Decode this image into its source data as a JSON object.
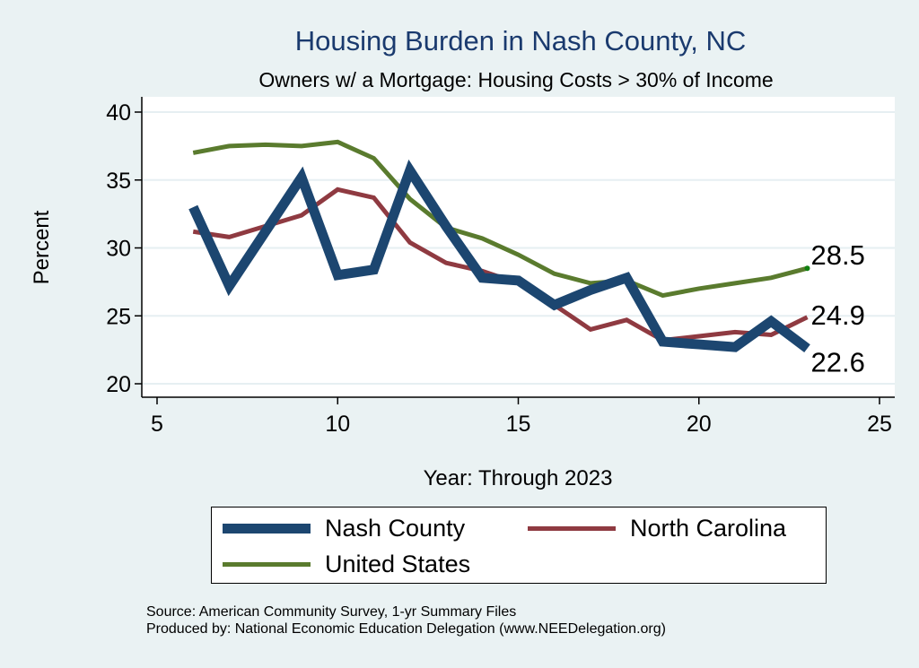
{
  "chart_data": {
    "type": "line",
    "title": "Housing Burden in Nash County, NC",
    "subtitle": "Owners w/ a Mortgage: Housing Costs > 30% of Income",
    "xlabel": "Year: Through 2023",
    "ylabel": "Percent",
    "xlim": [
      5,
      25
    ],
    "ylim": [
      20,
      40
    ],
    "xticks": [
      "5",
      "10",
      "15",
      "20",
      "25"
    ],
    "yticks": [
      "20",
      "25",
      "30",
      "35",
      "40"
    ],
    "grid": true,
    "legend_position": "bottom",
    "x": [
      6,
      7,
      8,
      9,
      10,
      11,
      12,
      13,
      14,
      15,
      16,
      17,
      18,
      19,
      20,
      21,
      22,
      23
    ],
    "series": [
      {
        "name": "Nash County",
        "color": "#1c4670",
        "values": [
          33.0,
          27.2,
          31.2,
          35.2,
          28.0,
          28.4,
          35.7,
          31.6,
          27.8,
          27.6,
          25.8,
          26.9,
          27.8,
          23.1,
          22.9,
          22.7,
          24.6,
          22.6
        ],
        "end_label": "22.6"
      },
      {
        "name": "North Carolina",
        "color": "#8f3a41",
        "values": [
          31.2,
          30.8,
          31.6,
          32.4,
          34.3,
          33.7,
          30.4,
          28.9,
          28.3,
          27.4,
          25.8,
          24.0,
          24.7,
          23.2,
          23.5,
          23.8,
          23.6,
          24.9
        ],
        "end_label": "24.9"
      },
      {
        "name": "United States",
        "color": "#5a7b2e",
        "values": [
          37.0,
          37.5,
          37.6,
          37.5,
          37.8,
          36.6,
          33.6,
          31.5,
          30.7,
          29.5,
          28.1,
          27.4,
          27.6,
          26.5,
          27.0,
          27.4,
          27.8,
          28.5
        ],
        "end_label": "28.5"
      }
    ],
    "source": "Source: American Community Survey, 1-yr Summary Files",
    "producer": "Produced by: National Economic Education Delegation (www.NEEDelegation.org)"
  }
}
